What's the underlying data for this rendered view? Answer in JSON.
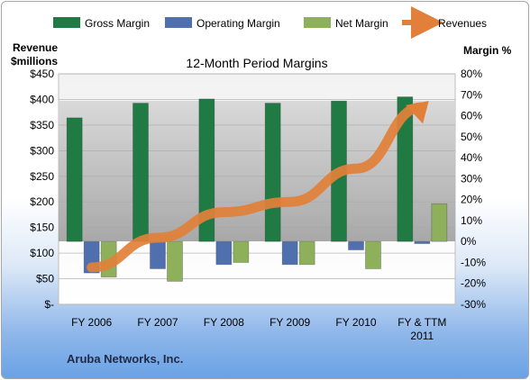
{
  "chart_data": {
    "type": "bar",
    "title": "12-Month Period Margins",
    "left_axis_title": [
      "Revenue",
      "$millions"
    ],
    "right_axis_title": "Margin %",
    "left_ticks": [
      "$450",
      "$400",
      "$350",
      "$300",
      "$250",
      "$200",
      "$150",
      "$100",
      "$50",
      "$-"
    ],
    "right_ticks": [
      "80%",
      "70%",
      "60%",
      "50%",
      "40%",
      "30%",
      "20%",
      "10%",
      "0%",
      "-10%",
      "-20%",
      "-30%"
    ],
    "left_ylim": [
      0,
      450
    ],
    "right_ylim": [
      -30,
      80
    ],
    "categories": [
      [
        "FY 2006"
      ],
      [
        "FY 2007"
      ],
      [
        "FY 2008"
      ],
      [
        "FY 2009"
      ],
      [
        "FY 2010"
      ],
      [
        "FY & TTM",
        "2011"
      ]
    ],
    "series": [
      {
        "name": "Gross Margin",
        "axis": "right",
        "color": "#1f7a44",
        "values": [
          59,
          66,
          68,
          66,
          67,
          69
        ]
      },
      {
        "name": "Operating Margin",
        "axis": "right",
        "color": "#4f6fae",
        "values": [
          -15,
          -13,
          -11,
          -11,
          -4,
          -1
        ]
      },
      {
        "name": "Net Margin",
        "axis": "right",
        "color": "#8fb05a",
        "values": [
          -17,
          -19,
          -10,
          -11,
          -13,
          18
        ]
      },
      {
        "name": "Revenues",
        "axis": "left",
        "color": "#e2803a",
        "values": [
          72,
          130,
          180,
          200,
          265,
          385
        ]
      }
    ],
    "legend_position": "top",
    "grid": true
  },
  "footer": "Aruba Networks, Inc."
}
